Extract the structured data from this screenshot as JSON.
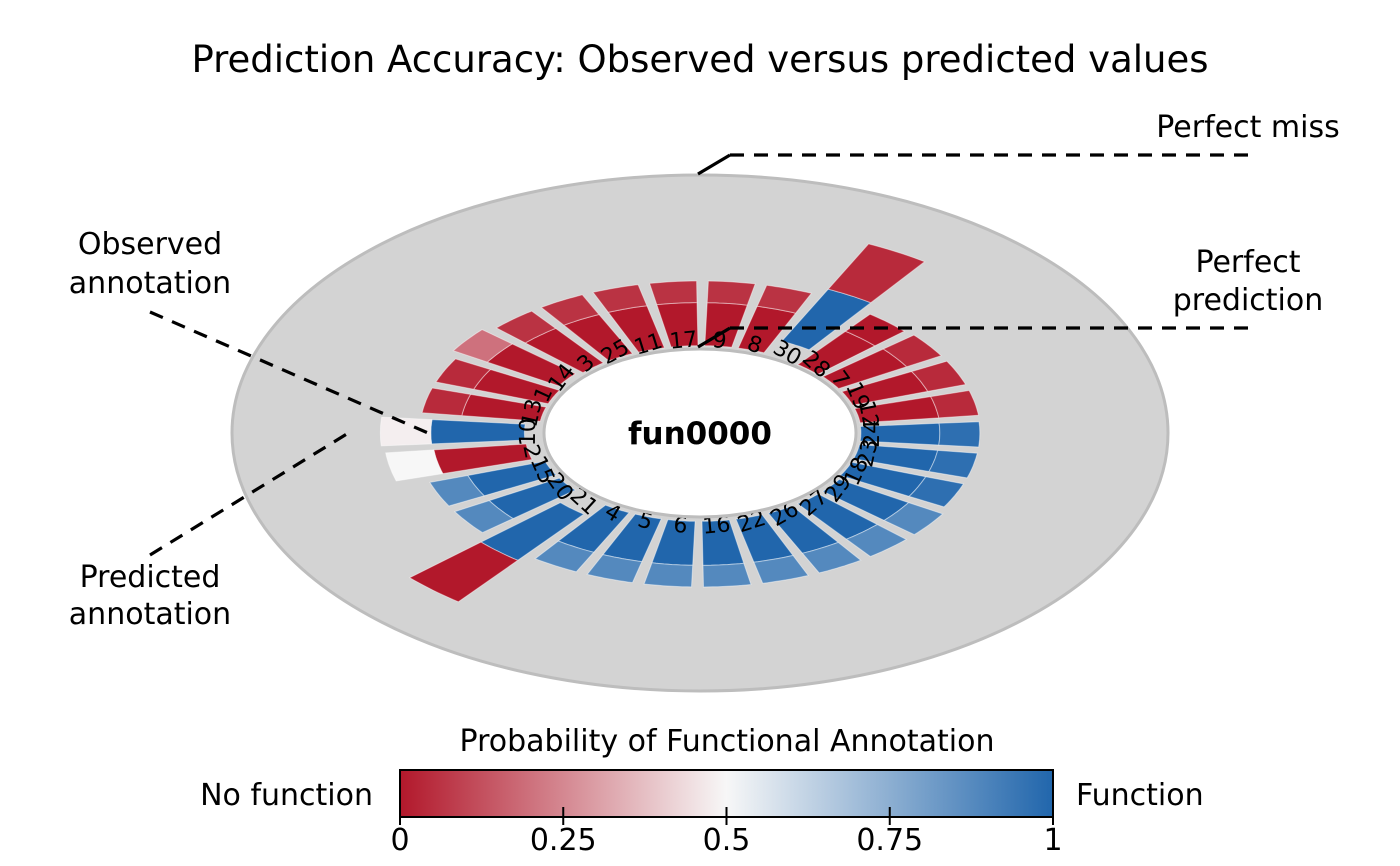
{
  "chart_data": {
    "type": "radial",
    "title": "Prediction Accuracy: Observed versus predicted values",
    "center_label": "fun0000",
    "annotations": {
      "perfect_miss": "Perfect miss",
      "perfect_prediction": [
        "Perfect",
        "prediction"
      ],
      "observed_annotation": [
        "Observed",
        "annotation"
      ],
      "predicted_annotation": [
        "Predicted",
        "annotation"
      ]
    },
    "samples": [
      {
        "id": "28",
        "observed": 0,
        "predicted": 0
      },
      {
        "id": "7",
        "observed": 0,
        "predicted": 0.04
      },
      {
        "id": "19",
        "observed": 0,
        "predicted": 0.04
      },
      {
        "id": "12",
        "observed": 0,
        "predicted": 0.04
      },
      {
        "id": "24",
        "observed": 1,
        "predicted": 0.97
      },
      {
        "id": "23",
        "observed": 1,
        "predicted": 0.97
      },
      {
        "id": "18",
        "observed": 1,
        "predicted": 0.97
      },
      {
        "id": "29",
        "observed": 1,
        "predicted": 0.88
      },
      {
        "id": "27",
        "observed": 1,
        "predicted": 0.88
      },
      {
        "id": "26",
        "observed": 1,
        "predicted": 0.88
      },
      {
        "id": "22",
        "observed": 1,
        "predicted": 0.88
      },
      {
        "id": "16",
        "observed": 1,
        "predicted": 0.88
      },
      {
        "id": "6",
        "observed": 1,
        "predicted": 0.88
      },
      {
        "id": "5",
        "observed": 1,
        "predicted": 0.88
      },
      {
        "id": "4",
        "observed": 1,
        "predicted": 0.88
      },
      {
        "id": "21",
        "observed": 1,
        "predicted": 0
      },
      {
        "id": "20",
        "observed": 1,
        "predicted": 0.88
      },
      {
        "id": "15",
        "observed": 1,
        "predicted": 0.88
      },
      {
        "id": "2",
        "observed": 0,
        "predicted": 0.5
      },
      {
        "id": "10",
        "observed": 1,
        "predicted": 0.48
      },
      {
        "id": "13",
        "observed": 0,
        "predicted": 0.04
      },
      {
        "id": "1",
        "observed": 0,
        "predicted": 0.04
      },
      {
        "id": "14",
        "observed": 0,
        "predicted": 0.2
      },
      {
        "id": "3",
        "observed": 0,
        "predicted": 0.06
      },
      {
        "id": "25",
        "observed": 0,
        "predicted": 0.06
      },
      {
        "id": "11",
        "observed": 0,
        "predicted": 0.06
      },
      {
        "id": "17",
        "observed": 0,
        "predicted": 0.06
      },
      {
        "id": "9",
        "observed": 0,
        "predicted": 0.06
      },
      {
        "id": "8",
        "observed": 0,
        "predicted": 0.06
      },
      {
        "id": "30",
        "observed": 1,
        "predicted": 0.04
      }
    ],
    "colorbar": {
      "title": "Probability of Functional Annotation",
      "left_label": "No function",
      "right_label": "Function",
      "ticks": [
        "0",
        "0.25",
        "0.5",
        "0.75",
        "1"
      ],
      "tick_values": [
        0,
        0.25,
        0.5,
        0.75,
        1
      ],
      "range": [
        0,
        1
      ],
      "colors": {
        "low": "#b2182b",
        "mid": "#f7f7f7",
        "high": "#2166ac"
      }
    },
    "colors": {
      "disk": "#d3d3d3",
      "disk_edge": "#bdbdbd",
      "center": "#ffffff"
    }
  }
}
